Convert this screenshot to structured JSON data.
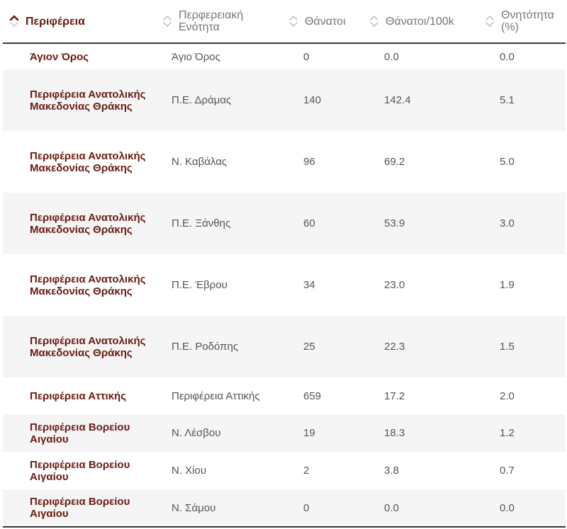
{
  "table": {
    "headers": [
      {
        "label": "Περιφέρεια",
        "active": true
      },
      {
        "label": "Περφερειακή Ενότητα",
        "active": false
      },
      {
        "label": "Θάνατοι",
        "active": false
      },
      {
        "label": "Θάνατοι/100k",
        "active": false
      },
      {
        "label": "Θνητότητα (%)",
        "active": false
      }
    ],
    "rows": [
      {
        "region": "Άγιον Όρος",
        "unit": "Άγιο Όρος",
        "deaths": "0",
        "per100k": "0.0",
        "fatality": "0.0"
      },
      {
        "region": "Περιφέρεια Ανατολικής Μακεδονίας Θράκης",
        "unit": "Π.Ε. Δράμας",
        "deaths": "140",
        "per100k": "142.4",
        "fatality": "5.1"
      },
      {
        "region": "Περιφέρεια Ανατολικής Μακεδονίας Θράκης",
        "unit": "Ν. Καβάλας",
        "deaths": "96",
        "per100k": "69.2",
        "fatality": "5.0"
      },
      {
        "region": "Περιφέρεια Ανατολικής Μακεδονίας Θράκης",
        "unit": "Π.Ε. Ξάνθης",
        "deaths": "60",
        "per100k": "53.9",
        "fatality": "3.0"
      },
      {
        "region": "Περιφέρεια Ανατολικής Μακεδονίας Θράκης",
        "unit": "Π.Ε. Έβρου",
        "deaths": "34",
        "per100k": "23.0",
        "fatality": "1.9"
      },
      {
        "region": "Περιφέρεια Ανατολικής Μακεδονίας Θράκης",
        "unit": "Π.Ε. Ροδόπης",
        "deaths": "25",
        "per100k": "22.3",
        "fatality": "1.5"
      },
      {
        "region": "Περιφέρεια Αττικής",
        "unit": "Περιφέρεια Αττικής",
        "deaths": "659",
        "per100k": "17.2",
        "fatality": "2.0"
      },
      {
        "region": "Περιφέρεια Βορείου Αιγαίου",
        "unit": "Ν. Λέσβου",
        "deaths": "19",
        "per100k": "18.3",
        "fatality": "1.2"
      },
      {
        "region": "Περιφέρεια Βορείου Αιγαίου",
        "unit": "Ν. Χίου",
        "deaths": "2",
        "per100k": "3.8",
        "fatality": "0.7"
      },
      {
        "region": "Περιφέρεια Βορείου Αιγαίου",
        "unit": "Ν. Σάμου",
        "deaths": "0",
        "per100k": "0.0",
        "fatality": "0.0"
      }
    ]
  },
  "colors": {
    "accent": "#6a1b13",
    "header_text": "#777777",
    "sort_inactive": "#c8c8c8",
    "row_alt": "#f5f5f5"
  },
  "icons": {
    "sort_active": "sort-ascending-icon",
    "sort_inactive": "sort-icon"
  }
}
